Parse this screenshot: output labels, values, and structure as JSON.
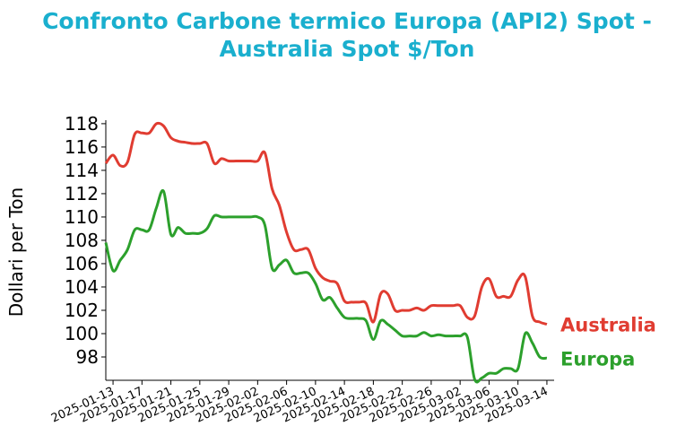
{
  "chart_data": {
    "type": "line",
    "title_lines": [
      "Confronto Carbone termico Europa (API2) Spot -",
      "Australia Spot $/Ton"
    ],
    "xlabel": "",
    "ylabel": "Dollari per Ton",
    "ylim": [
      96,
      118.3
    ],
    "yticks": [
      98,
      100,
      102,
      104,
      106,
      108,
      110,
      112,
      114,
      116,
      118
    ],
    "xlim": [
      "2025-01-12",
      "2025-03-15"
    ],
    "xticks": [
      "2025-01-13",
      "2025-01-17",
      "2025-01-21",
      "2025-01-25",
      "2025-01-29",
      "2025-02-02",
      "2025-02-06",
      "2025-02-10",
      "2025-02-14",
      "2025-02-18",
      "2025-02-22",
      "2025-02-26",
      "2025-03-02",
      "2025-03-06",
      "2025-03-10",
      "2025-03-14"
    ],
    "series": [
      {
        "name": "Australia",
        "color": "#e03c31",
        "points": [
          [
            "2025-01-12",
            114.6
          ],
          [
            "2025-01-13",
            115.3
          ],
          [
            "2025-01-14",
            114.4
          ],
          [
            "2025-01-15",
            114.7
          ],
          [
            "2025-01-16",
            117.1
          ],
          [
            "2025-01-17",
            117.2
          ],
          [
            "2025-01-18",
            117.2
          ],
          [
            "2025-01-19",
            118.0
          ],
          [
            "2025-01-20",
            117.8
          ],
          [
            "2025-01-21",
            116.8
          ],
          [
            "2025-01-22",
            116.5
          ],
          [
            "2025-01-23",
            116.4
          ],
          [
            "2025-01-24",
            116.3
          ],
          [
            "2025-01-25",
            116.3
          ],
          [
            "2025-01-26",
            116.3
          ],
          [
            "2025-01-27",
            114.6
          ],
          [
            "2025-01-28",
            115.0
          ],
          [
            "2025-01-29",
            114.8
          ],
          [
            "2025-01-30",
            114.8
          ],
          [
            "2025-01-31",
            114.8
          ],
          [
            "2025-02-01",
            114.8
          ],
          [
            "2025-02-02",
            114.8
          ],
          [
            "2025-02-03",
            115.5
          ],
          [
            "2025-02-04",
            112.4
          ],
          [
            "2025-02-05",
            111.0
          ],
          [
            "2025-02-06",
            108.7
          ],
          [
            "2025-02-07",
            107.2
          ],
          [
            "2025-02-08",
            107.2
          ],
          [
            "2025-02-09",
            107.2
          ],
          [
            "2025-02-10",
            105.6
          ],
          [
            "2025-02-11",
            104.8
          ],
          [
            "2025-02-12",
            104.5
          ],
          [
            "2025-02-13",
            104.3
          ],
          [
            "2025-02-14",
            102.8
          ],
          [
            "2025-02-15",
            102.7
          ],
          [
            "2025-02-16",
            102.7
          ],
          [
            "2025-02-17",
            102.6
          ],
          [
            "2025-02-18",
            101.0
          ],
          [
            "2025-02-19",
            103.4
          ],
          [
            "2025-02-20",
            103.4
          ],
          [
            "2025-02-21",
            102.0
          ],
          [
            "2025-02-22",
            102.0
          ],
          [
            "2025-02-23",
            102.0
          ],
          [
            "2025-02-24",
            102.2
          ],
          [
            "2025-02-25",
            102.0
          ],
          [
            "2025-02-26",
            102.4
          ],
          [
            "2025-02-27",
            102.4
          ],
          [
            "2025-02-28",
            102.4
          ],
          [
            "2025-03-01",
            102.4
          ],
          [
            "2025-03-02",
            102.4
          ],
          [
            "2025-03-03",
            101.4
          ],
          [
            "2025-03-04",
            101.5
          ],
          [
            "2025-03-05",
            104.0
          ],
          [
            "2025-03-06",
            104.7
          ],
          [
            "2025-03-07",
            103.2
          ],
          [
            "2025-03-08",
            103.2
          ],
          [
            "2025-03-09",
            103.2
          ],
          [
            "2025-03-10",
            104.6
          ],
          [
            "2025-03-11",
            104.9
          ],
          [
            "2025-03-12",
            101.5
          ],
          [
            "2025-03-13",
            101.0
          ],
          [
            "2025-03-14",
            100.8
          ]
        ]
      },
      {
        "name": "Europa",
        "color": "#2ca02c",
        "points": [
          [
            "2025-01-12",
            107.8
          ],
          [
            "2025-01-13",
            105.4
          ],
          [
            "2025-01-14",
            106.3
          ],
          [
            "2025-01-15",
            107.2
          ],
          [
            "2025-01-16",
            108.9
          ],
          [
            "2025-01-17",
            108.9
          ],
          [
            "2025-01-18",
            108.9
          ],
          [
            "2025-01-19",
            110.8
          ],
          [
            "2025-01-20",
            112.2
          ],
          [
            "2025-01-21",
            108.5
          ],
          [
            "2025-01-22",
            109.1
          ],
          [
            "2025-01-23",
            108.6
          ],
          [
            "2025-01-24",
            108.6
          ],
          [
            "2025-01-25",
            108.6
          ],
          [
            "2025-01-26",
            109.0
          ],
          [
            "2025-01-27",
            110.1
          ],
          [
            "2025-01-28",
            110.0
          ],
          [
            "2025-01-29",
            110.0
          ],
          [
            "2025-01-30",
            110.0
          ],
          [
            "2025-01-31",
            110.0
          ],
          [
            "2025-02-01",
            110.0
          ],
          [
            "2025-02-02",
            110.0
          ],
          [
            "2025-02-03",
            109.3
          ],
          [
            "2025-02-04",
            105.6
          ],
          [
            "2025-02-05",
            105.9
          ],
          [
            "2025-02-06",
            106.3
          ],
          [
            "2025-02-07",
            105.2
          ],
          [
            "2025-02-08",
            105.2
          ],
          [
            "2025-02-09",
            105.2
          ],
          [
            "2025-02-10",
            104.3
          ],
          [
            "2025-02-11",
            102.9
          ],
          [
            "2025-02-12",
            103.1
          ],
          [
            "2025-02-13",
            102.2
          ],
          [
            "2025-02-14",
            101.4
          ],
          [
            "2025-02-15",
            101.3
          ],
          [
            "2025-02-16",
            101.3
          ],
          [
            "2025-02-17",
            101.1
          ],
          [
            "2025-02-18",
            99.5
          ],
          [
            "2025-02-19",
            101.1
          ],
          [
            "2025-02-20",
            100.8
          ],
          [
            "2025-02-21",
            100.3
          ],
          [
            "2025-02-22",
            99.8
          ],
          [
            "2025-02-23",
            99.8
          ],
          [
            "2025-02-24",
            99.8
          ],
          [
            "2025-02-25",
            100.1
          ],
          [
            "2025-02-26",
            99.8
          ],
          [
            "2025-02-27",
            99.9
          ],
          [
            "2025-02-28",
            99.8
          ],
          [
            "2025-03-01",
            99.8
          ],
          [
            "2025-03-02",
            99.8
          ],
          [
            "2025-03-03",
            99.7
          ],
          [
            "2025-03-04",
            96.1
          ],
          [
            "2025-03-05",
            96.2
          ],
          [
            "2025-03-06",
            96.6
          ],
          [
            "2025-03-07",
            96.6
          ],
          [
            "2025-03-08",
            97.0
          ],
          [
            "2025-03-09",
            97.0
          ],
          [
            "2025-03-10",
            97.0
          ],
          [
            "2025-03-11",
            100.0
          ],
          [
            "2025-03-12",
            99.2
          ],
          [
            "2025-03-13",
            98.0
          ],
          [
            "2025-03-14",
            97.9
          ]
        ]
      }
    ],
    "grid": false,
    "legend": "inline-right"
  }
}
